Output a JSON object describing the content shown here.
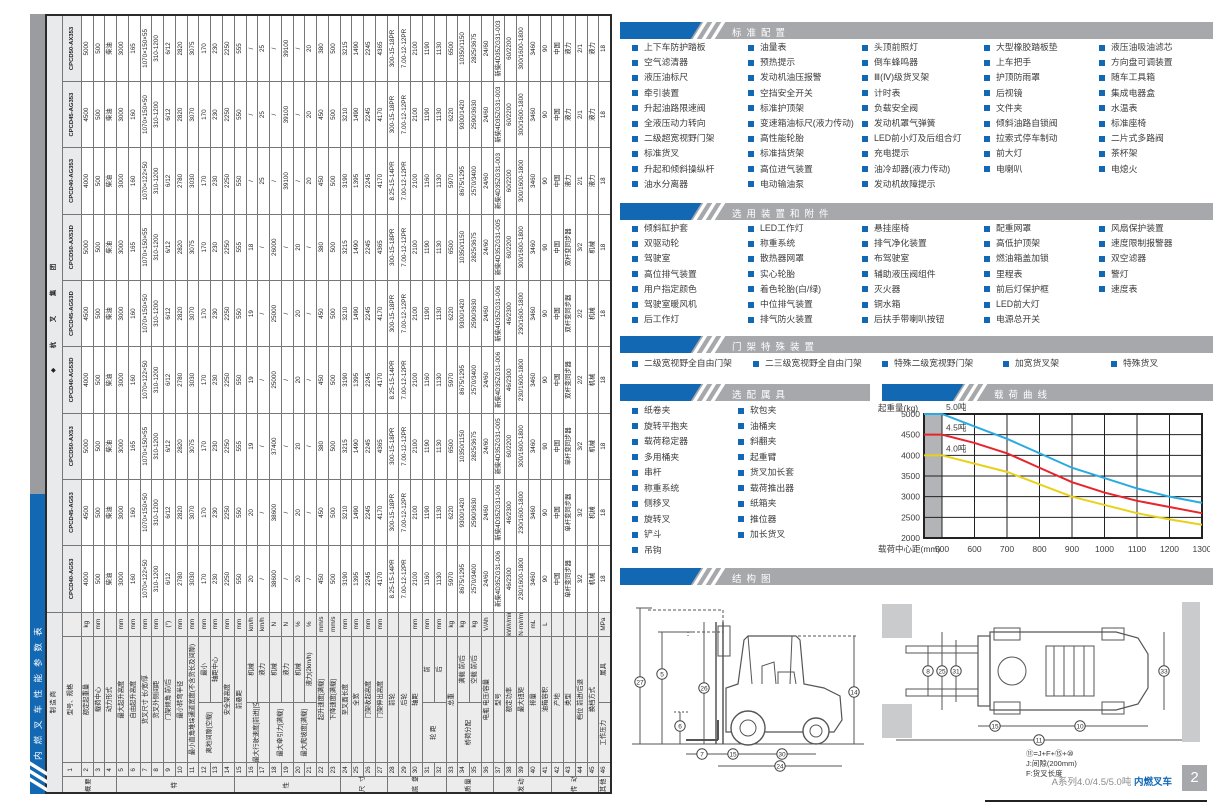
{
  "spec_table": {
    "banner": "内燃叉车性能参数表",
    "manufacturer_header": "制 造 商",
    "manufacturer": "杭 叉 集 团",
    "models": [
      "CPCD40-AG53",
      "CPCD45-AG53",
      "CPCD50-AX53",
      "CPCD40-AG53D",
      "CPCD45-AG53D",
      "CPCD50-AX53D",
      "CPCD40-AG353",
      "CPCD45-AG353",
      "CPCD50-AX353"
    ],
    "groups": [
      {
        "label": "概要",
        "span": 4
      },
      {
        "label": "特",
        "span": 10
      },
      {
        "label": "性",
        "span": 9
      },
      {
        "label": "尺 寸",
        "span": 4
      },
      {
        "label": "底 盘",
        "span": 5
      },
      {
        "label": "质量",
        "span": 4
      },
      {
        "label": "发动机",
        "span": 5
      },
      {
        "label": "传 动",
        "span": 4
      },
      {
        "label": "其他",
        "span": 1
      }
    ],
    "rows": [
      {
        "n": 1,
        "name": "型号、规格",
        "u": "",
        "v": [
          "CPCD40-AG53",
          "CPCD45-AG53",
          "CPCD50-AX53",
          "CPCD40-AG53D",
          "CPCD45-AG53D",
          "CPCD50-AX53D",
          "CPCD40-AG353",
          "CPCD45-AG353",
          "CPCD50-AX353"
        ]
      },
      {
        "n": 2,
        "name": "额定起重量",
        "u": "kg",
        "v": [
          "4000",
          "4500",
          "5000",
          "4000",
          "4500",
          "5000",
          "4000",
          "4500",
          "5000"
        ]
      },
      {
        "n": 3,
        "name": "载荷中心",
        "u": "mm",
        "v": [
          "500",
          "500",
          "500",
          "500",
          "500",
          "500",
          "500",
          "500",
          "500"
        ]
      },
      {
        "n": 4,
        "name": "动力形式",
        "u": "",
        "v": [
          "柴油",
          "柴油",
          "柴油",
          "柴油",
          "柴油",
          "柴油",
          "柴油",
          "柴油",
          "柴油"
        ]
      },
      {
        "n": 5,
        "name": "最大起升高度",
        "u": "mm",
        "v": [
          "3000",
          "3000",
          "3000",
          "3000",
          "3000",
          "3000",
          "3000",
          "3000",
          "3000"
        ]
      },
      {
        "n": 6,
        "name": "自由起升高度",
        "u": "mm",
        "v": [
          "160",
          "160",
          "165",
          "160",
          "160",
          "165",
          "160",
          "160",
          "165"
        ]
      },
      {
        "n": 7,
        "name": "货叉尺寸 长/宽/厚",
        "u": "mm",
        "v": [
          "1070×122×50",
          "1070×150×50",
          "1070×150×55",
          "1070×122×50",
          "1070×150×50",
          "1070×150×55",
          "1070×122×50",
          "1070×150×50",
          "1070×150×55"
        ]
      },
      {
        "n": 8,
        "name": "货叉外侧间距",
        "u": "mm",
        "v": [
          "310-1200",
          "310-1200",
          "310-1200",
          "310-1200",
          "310-1200",
          "310-1200",
          "310-1200",
          "310-1200",
          "310-1200"
        ]
      },
      {
        "n": 9,
        "name": "门架倾角 前/后",
        "u": "(°)",
        "v": [
          "6/12",
          "6/12",
          "6/12",
          "6/12",
          "6/12",
          "6/12",
          "6/12",
          "6/12",
          "6/12"
        ]
      },
      {
        "n": 10,
        "name": "最小转弯半径",
        "u": "mm",
        "v": [
          "2780",
          "2820",
          "2820",
          "2780",
          "2820",
          "2820",
          "2780",
          "2820",
          "2820"
        ]
      },
      {
        "n": 11,
        "name": "最小直角堆垛通道宽度(不含货长及间隙)",
        "u": "mm",
        "v": [
          "3030",
          "3070",
          "3075",
          "3030",
          "3070",
          "3075",
          "3030",
          "3070",
          "3075"
        ]
      },
      {
        "n": 12,
        "p": "离地间隙[空载]",
        "ps": 2,
        "s": "最小",
        "u": "mm",
        "v": [
          "170",
          "170",
          "170",
          "170",
          "170",
          "170",
          "170",
          "170",
          "170"
        ]
      },
      {
        "n": 13,
        "s": "轴距中心",
        "u": "mm",
        "v": [
          "230",
          "230",
          "230",
          "230",
          "230",
          "230",
          "230",
          "230",
          "230"
        ]
      },
      {
        "n": 14,
        "name": "安全架高度",
        "u": "mm",
        "v": [
          "2250",
          "2250",
          "2250",
          "2250",
          "2250",
          "2250",
          "2250",
          "2250",
          "2250"
        ]
      },
      {
        "n": 15,
        "name": "前悬距",
        "u": "mm",
        "v": [
          "550",
          "550",
          "555",
          "550",
          "550",
          "555",
          "550",
          "550",
          "555"
        ]
      },
      {
        "n": 16,
        "p": "最大行驶速度[前进][空载]",
        "ps": 2,
        "s": "机械",
        "u": "km/h",
        "v": [
          "20",
          "20",
          "19",
          "19",
          "19",
          "18",
          "/",
          "/",
          "/"
        ]
      },
      {
        "n": 17,
        "s": "液力",
        "u": "km/h",
        "v": [
          "/",
          "/",
          "/",
          "/",
          "/",
          "/",
          "25",
          "25",
          "25"
        ]
      },
      {
        "n": 18,
        "p": "最大牵引力[满载]",
        "ps": 2,
        "s": "机械",
        "u": "N",
        "v": [
          "38600",
          "38600",
          "37400",
          "25000",
          "25000",
          "26000",
          "/",
          "/",
          "/"
        ]
      },
      {
        "n": 19,
        "s": "液力",
        "u": "N",
        "v": [
          "/",
          "/",
          "/",
          "/",
          "/",
          "/",
          "39100",
          "39100",
          "39100"
        ]
      },
      {
        "n": 20,
        "p": "最大爬坡度[满载]",
        "ps": 2,
        "s": "机械",
        "u": "%",
        "v": [
          "20",
          "20",
          "20",
          "20",
          "20",
          "20",
          "/",
          "/",
          "/"
        ]
      },
      {
        "n": 21,
        "s": "液力(2km/h)",
        "u": "%",
        "v": [
          "/",
          "/",
          "/",
          "/",
          "/",
          "/",
          "20",
          "20",
          "20"
        ]
      },
      {
        "n": 22,
        "name": "起升速度[满载]",
        "u": "mm/s",
        "v": [
          "450",
          "450",
          "380",
          "450",
          "450",
          "380",
          "450",
          "450",
          "380"
        ]
      },
      {
        "n": 23,
        "name": "下降速度[满载]",
        "u": "mm/s",
        "v": [
          "500",
          "500",
          "500",
          "500",
          "500",
          "500",
          "500",
          "500",
          "500"
        ]
      },
      {
        "n": 24,
        "name": "至叉面长度",
        "u": "mm",
        "v": [
          "3190",
          "3210",
          "3215",
          "3190",
          "3210",
          "3215",
          "3190",
          "3210",
          "3215"
        ]
      },
      {
        "n": 25,
        "name": "全宽",
        "u": "mm",
        "v": [
          "1395",
          "1490",
          "1490",
          "1395",
          "1490",
          "1490",
          "1395",
          "1490",
          "1490"
        ]
      },
      {
        "n": 26,
        "name": "门架收起高度",
        "u": "mm",
        "v": [
          "2245",
          "2245",
          "2245",
          "2245",
          "2245",
          "2245",
          "2245",
          "2245",
          "2245"
        ]
      },
      {
        "n": 27,
        "name": "门架伸出高度",
        "u": "mm",
        "v": [
          "4170",
          "4170",
          "4365",
          "4170",
          "4170",
          "4365",
          "4170",
          "4170",
          "4365"
        ]
      },
      {
        "n": 28,
        "name": "前轮",
        "u": "",
        "v": [
          "8.25-15-14PR",
          "300-15-18PR",
          "300-15-18PR",
          "8.25-15-14PR",
          "300-15-18PR",
          "300-15-18PR",
          "8.25-15-14PR",
          "300-15-18PR",
          "300-15-18PR"
        ]
      },
      {
        "n": 29,
        "name": "后轮",
        "u": "",
        "v": [
          "7.00-12-12PR",
          "7.00-12-12PR",
          "7.00-12-12PR",
          "7.00-12-12PR",
          "7.00-12-12PR",
          "7.00-12-12PR",
          "7.00-12-12PR",
          "7.00-12-12PR",
          "7.00-12-12PR"
        ]
      },
      {
        "n": 30,
        "name": "轴距",
        "u": "mm",
        "v": [
          "2100",
          "2100",
          "2100",
          "2100",
          "2100",
          "2100",
          "2100",
          "2100",
          "2100"
        ]
      },
      {
        "n": 31,
        "p": "轮 距",
        "ps": 2,
        "s": "前",
        "u": "mm",
        "v": [
          "1160",
          "1190",
          "1190",
          "1160",
          "1190",
          "1190",
          "1160",
          "1190",
          "1190"
        ]
      },
      {
        "n": 32,
        "s": "后",
        "u": "mm",
        "v": [
          "1130",
          "1130",
          "1130",
          "1130",
          "1130",
          "1130",
          "1130",
          "1130",
          "1130"
        ]
      },
      {
        "n": 33,
        "name": "总重",
        "u": "kg",
        "v": [
          "5970",
          "6220",
          "6500",
          "5970",
          "6220",
          "6500",
          "5970",
          "6220",
          "6500"
        ]
      },
      {
        "n": 34,
        "p": "桥荷分配",
        "ps": 2,
        "s": "满载 前/后",
        "u": "kg",
        "v": [
          "8675/1295",
          "9300/1420",
          "10350/1150",
          "8675/1295",
          "9300/1420",
          "10350/1150",
          "8675/1295",
          "9300/1420",
          "10350/1150"
        ]
      },
      {
        "n": 35,
        "s": "空载 前/后",
        "u": "kg",
        "v": [
          "2570/3400",
          "2590/3630",
          "2825/3675",
          "2570/3400",
          "2590/3630",
          "2825/3675",
          "2570/3400",
          "2590/3630",
          "2825/3675"
        ]
      },
      {
        "n": 36,
        "name": "电瓶 电压/容量",
        "u": "V/Ah",
        "v": [
          "24/60",
          "24/60",
          "24/60",
          "24/60",
          "24/60",
          "24/60",
          "24/60",
          "24/60",
          "24/60"
        ]
      },
      {
        "n": 37,
        "name": "型号",
        "u": "",
        "v": [
          "新柴4D35ZG31-006",
          "新柴4D35ZG31-006",
          "新柴4D35ZG31-005",
          "新柴4D35ZG31-006",
          "新柴4D35ZG31-006",
          "新柴4D35ZG31-005",
          "新柴4D35ZG31-003",
          "新柴4D35ZG31-003",
          "新柴4D35ZG31-003"
        ]
      },
      {
        "n": 38,
        "name": "额定功率",
        "u": "kW/r/min",
        "v": [
          "46/2300",
          "46/2300",
          "60/2200",
          "46/2300",
          "46/2300",
          "60/2200",
          "60/2200",
          "60/2200",
          "60/2200"
        ]
      },
      {
        "n": 39,
        "name": "最大扭矩",
        "u": "N·m/r/min",
        "v": [
          "230/1600-1800",
          "230/1600-1800",
          "300/1600-1800",
          "230/1600-1800",
          "230/1600-1800",
          "300/1600-1800",
          "300/1600-1800",
          "300/1600-1800",
          "300/1600-1800"
        ]
      },
      {
        "n": 40,
        "name": "排量",
        "u": "mL",
        "v": [
          "3460",
          "3460",
          "3460",
          "3460",
          "3460",
          "3460",
          "3460",
          "3460",
          "3460"
        ]
      },
      {
        "n": 41,
        "name": "油箱容积",
        "u": "L",
        "v": [
          "90",
          "90",
          "90",
          "90",
          "90",
          "90",
          "90",
          "90",
          "90"
        ]
      },
      {
        "n": 42,
        "name": "产地",
        "u": "",
        "v": [
          "中国",
          "中国",
          "中国",
          "中国",
          "中国",
          "中国",
          "中国",
          "中国",
          "中国"
        ]
      },
      {
        "n": 43,
        "name": "类型",
        "u": "",
        "v": [
          "单杆变同步器",
          "单杆变同步器",
          "单杆变同步器",
          "双杆变同步器",
          "双杆变同步器",
          "双杆变同步器",
          "液力",
          "液力",
          "液力"
        ]
      },
      {
        "n": 44,
        "name": "档位 前进/后退",
        "u": "",
        "v": [
          "3/2",
          "3/2",
          "3/2",
          "2/2",
          "2/2",
          "3/2",
          "2/1",
          "2/1",
          "2/1"
        ]
      },
      {
        "n": 45,
        "name": "换档方式",
        "u": "",
        "v": [
          "机械",
          "机械",
          "机械",
          "机械",
          "机械",
          "机械",
          "液力",
          "液力",
          "液力"
        ]
      },
      {
        "n": 46,
        "p": "工作压力",
        "ps": 1,
        "s": "属具",
        "u": "MPa",
        "v": [
          "18",
          "18",
          "18",
          "18",
          "18",
          "18",
          "18",
          "18",
          "18"
        ]
      }
    ]
  },
  "sections": {
    "std": {
      "title": "标准配置",
      "columns": [
        [
          "上下车防护踏板",
          "空气滤清器",
          "液压油标尺",
          "牵引装置",
          "升起油路限速阀",
          "全液压动力转向",
          "二级超宽视野门架",
          "标准货叉",
          "升起和倾斜操纵杆",
          "油水分离器"
        ],
        [
          "油量表",
          "预热提示",
          "发动机油压报警",
          "空挡安全开关",
          "标准护顶架",
          "变速箱油标尺(液力传动)",
          "高性能轮胎",
          "标准挡货架",
          "高位进气装置",
          "电动输油泵"
        ],
        [
          "头顶前照灯",
          "倒车蜂鸣器",
          "Ⅲ(Ⅳ)级货叉架",
          "计时表",
          "负载安全阀",
          "发动机罩气弹簧",
          "LED前小灯及后组合灯",
          "充电提示",
          "油冷却器(液力传动)",
          "发动机故障提示"
        ],
        [
          "大型橡胶踏板垫",
          "上车把手",
          "护顶防雨罩",
          "后视镜",
          "文件夹",
          "倾斜油路自锁阀",
          "拉索式停车制动",
          "前大灯",
          "电喇叭"
        ],
        [
          "液压油吸油滤芯",
          "方向盘可调装置",
          "随车工具箱",
          "集成电器盒",
          "水温表",
          "标准座椅",
          "二片式多路阀",
          "茶杯架",
          "电熄火"
        ]
      ]
    },
    "opt": {
      "title": "选用装置和附件",
      "columns": [
        [
          "倾斜缸护套",
          "双驱动轮",
          "驾驶室",
          "高位排气装置",
          "用户指定颜色",
          "驾驶室暖风机",
          "后工作灯"
        ],
        [
          "LED工作灯",
          "称重系统",
          "散热器网罩",
          "实心轮胎",
          "着色轮胎(白/绿)",
          "中位排气装置",
          "排气防火装置"
        ],
        [
          "悬挂座椅",
          "排气净化装置",
          "布驾驶室",
          "辅助液压阀组件",
          "灭火器",
          "铜水箱",
          "后扶手带喇叭按钮"
        ],
        [
          "配重网罩",
          "高低护顶架",
          "燃油箱盖加锁",
          "里程表",
          "前后灯保护框",
          "LED前大灯",
          "电源总开关"
        ],
        [
          "风扇保护装置",
          "速度限制报警器",
          "双空滤器",
          "警灯",
          "速度表"
        ]
      ]
    },
    "mast": {
      "title": "门架特殊装置",
      "items": [
        "二级宽视野全自由门架",
        "二三级宽视野全自由门架",
        "特殊二级宽视野门架",
        "加宽货叉架",
        "特殊货叉"
      ]
    },
    "attach": {
      "title": "选配属具",
      "columns": [
        [
          "纸卷夹",
          "旋转平抱夹",
          "载荷稳定器",
          "多用桶夹",
          "串杆",
          "称重系统",
          "侧移叉",
          "旋转叉",
          "铲斗",
          "吊钩"
        ],
        [
          "软包夹",
          "油桶夹",
          "斜翻夹",
          "起重臂",
          "货叉加长套",
          "载荷推出器",
          "纸箱夹",
          "推位器",
          "加长货叉"
        ]
      ]
    },
    "load_curve_title": "载荷曲线",
    "structure_title": "结构图"
  },
  "chart_data": {
    "type": "line",
    "title": "载荷曲线",
    "ylabel": "起重量(kg)",
    "xlabel": "载荷中心距(mm)",
    "x": [
      500,
      600,
      700,
      800,
      900,
      1000,
      1100,
      1200,
      1300
    ],
    "ylim": [
      2000,
      5000
    ],
    "yticks": [
      2000,
      2500,
      3000,
      3500,
      4000,
      4500,
      5000
    ],
    "grid": true,
    "shaded_region_left_of_x": 500,
    "series": [
      {
        "name": "5.0吨",
        "color": "#29abe2",
        "flat_value": 5000,
        "values": [
          5000,
          4700,
          4400,
          4050,
          3700,
          3450,
          3200,
          3000,
          2850
        ]
      },
      {
        "name": "4.5吨",
        "color": "#e8242c",
        "flat_value": 4500,
        "values": [
          4500,
          4300,
          4050,
          3700,
          3350,
          3100,
          2900,
          2750,
          2600
        ]
      },
      {
        "name": "4.0吨",
        "color": "#e8d119",
        "flat_value": 4000,
        "values": [
          4000,
          3800,
          3600,
          3300,
          3000,
          2800,
          2600,
          2450,
          2320
        ]
      }
    ]
  },
  "structure": {
    "side_callouts": [
      "27",
      "5",
      "26",
      "6",
      "14",
      "7",
      "15",
      "30",
      "24"
    ],
    "top_callouts": [
      "8",
      "25",
      "31",
      "15",
      "10",
      "11",
      "33"
    ],
    "notes": [
      "⑪=J+F+⑮+⑩",
      "J:间隙(200mm)",
      "F:货叉长度"
    ]
  },
  "footer": {
    "series_label": "A系列4.0/4.5/5.0吨 ",
    "product_label": "内燃叉车",
    "page_number": "2"
  }
}
